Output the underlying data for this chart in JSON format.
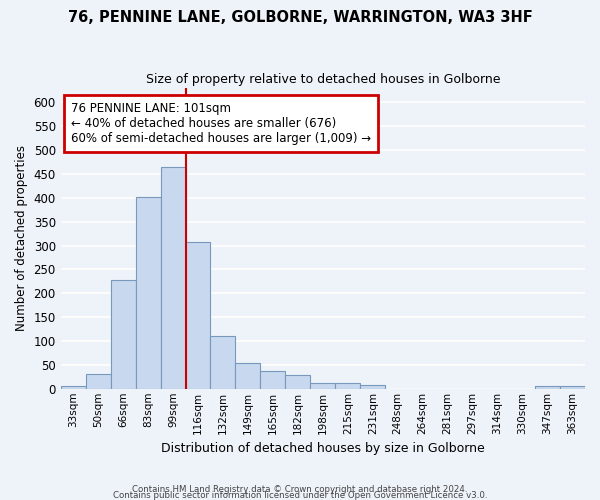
{
  "title1": "76, PENNINE LANE, GOLBORNE, WARRINGTON, WA3 3HF",
  "title2": "Size of property relative to detached houses in Golborne",
  "xlabel": "Distribution of detached houses by size in Golborne",
  "ylabel": "Number of detached properties",
  "categories": [
    "33sqm",
    "50sqm",
    "66sqm",
    "83sqm",
    "99sqm",
    "116sqm",
    "132sqm",
    "149sqm",
    "165sqm",
    "182sqm",
    "198sqm",
    "215sqm",
    "231sqm",
    "248sqm",
    "264sqm",
    "281sqm",
    "297sqm",
    "314sqm",
    "330sqm",
    "347sqm",
    "363sqm"
  ],
  "values": [
    5,
    30,
    228,
    402,
    465,
    307,
    110,
    54,
    38,
    28,
    13,
    12,
    7,
    0,
    0,
    0,
    0,
    0,
    0,
    5,
    5
  ],
  "bar_color": "#c8d8ee",
  "bar_edge_color": "#7799bb",
  "background_color": "#eef2f9",
  "grid_color": "#ffffff",
  "annotation_text": "76 PENNINE LANE: 101sqm\n← 40% of detached houses are smaller (676)\n60% of semi-detached houses are larger (1,009) →",
  "red_line_color": "#cc0000",
  "ylim": [
    0,
    630
  ],
  "yticks": [
    0,
    50,
    100,
    150,
    200,
    250,
    300,
    350,
    400,
    450,
    500,
    550,
    600
  ],
  "footer1": "Contains HM Land Registry data © Crown copyright and database right 2024.",
  "footer2": "Contains public sector information licensed under the Open Government Licence v3.0."
}
